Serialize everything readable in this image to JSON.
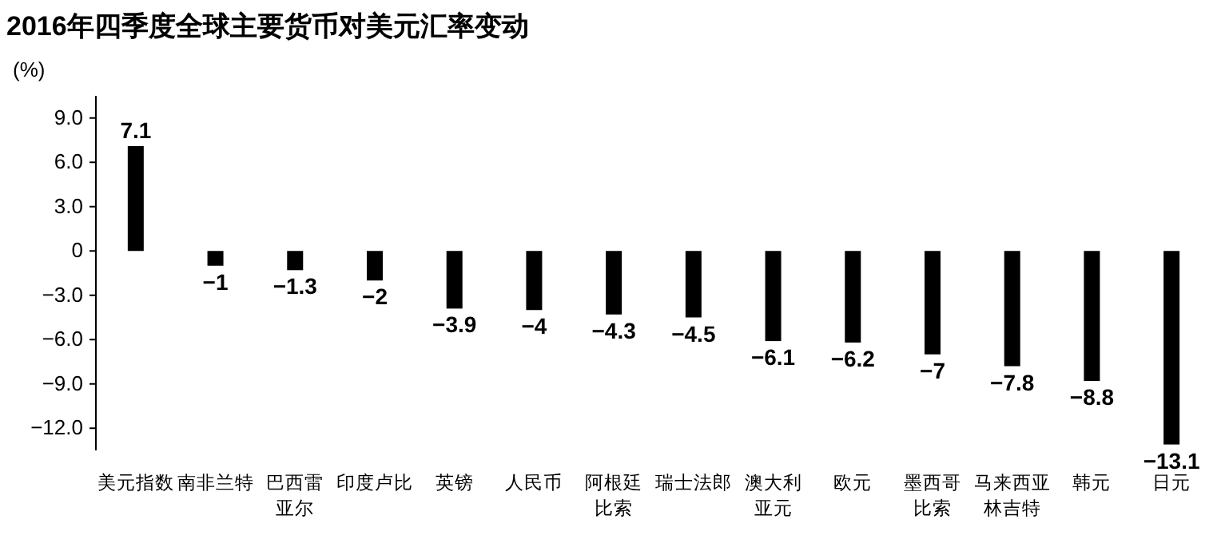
{
  "chart_data": {
    "type": "bar",
    "title": "2016年四季度全球主要货币对美元汇率变动",
    "ylabel": "(%)",
    "categories": [
      "美元指数",
      "南非兰特",
      "巴西雷亚尔",
      "印度卢比",
      "英镑",
      "人民币",
      "阿根廷比索",
      "瑞士法郎",
      "澳大利亚元",
      "欧元",
      "墨西哥比索",
      "马来西亚林吉特",
      "韩元",
      "日元"
    ],
    "values": [
      7.1,
      -1,
      -1.3,
      -2,
      -3.9,
      -4,
      -4.3,
      -4.5,
      -6.1,
      -6.2,
      -7,
      -7.8,
      -8.8,
      -13.1
    ],
    "value_labels": [
      "7.1",
      "−1",
      "−1.3",
      "−2",
      "−3.9",
      "−4",
      "−4.3",
      "−4.5",
      "−6.1",
      "−6.2",
      "−7",
      "−7.8",
      "−8.8",
      "−13.1"
    ],
    "color": "#000000",
    "ylim": [
      -13.5,
      10.5
    ],
    "yticks": [
      {
        "value": 9,
        "label": "9.0"
      },
      {
        "value": 6,
        "label": "6.0"
      },
      {
        "value": 3,
        "label": "3.0"
      },
      0,
      {
        "value": -3,
        "label": "−3.0"
      },
      {
        "value": -6,
        "label": "−6.0"
      },
      {
        "value": -9,
        "label": "−9.0"
      },
      {
        "value": -12,
        "label": "−12.0"
      }
    ],
    "grid": false
  }
}
